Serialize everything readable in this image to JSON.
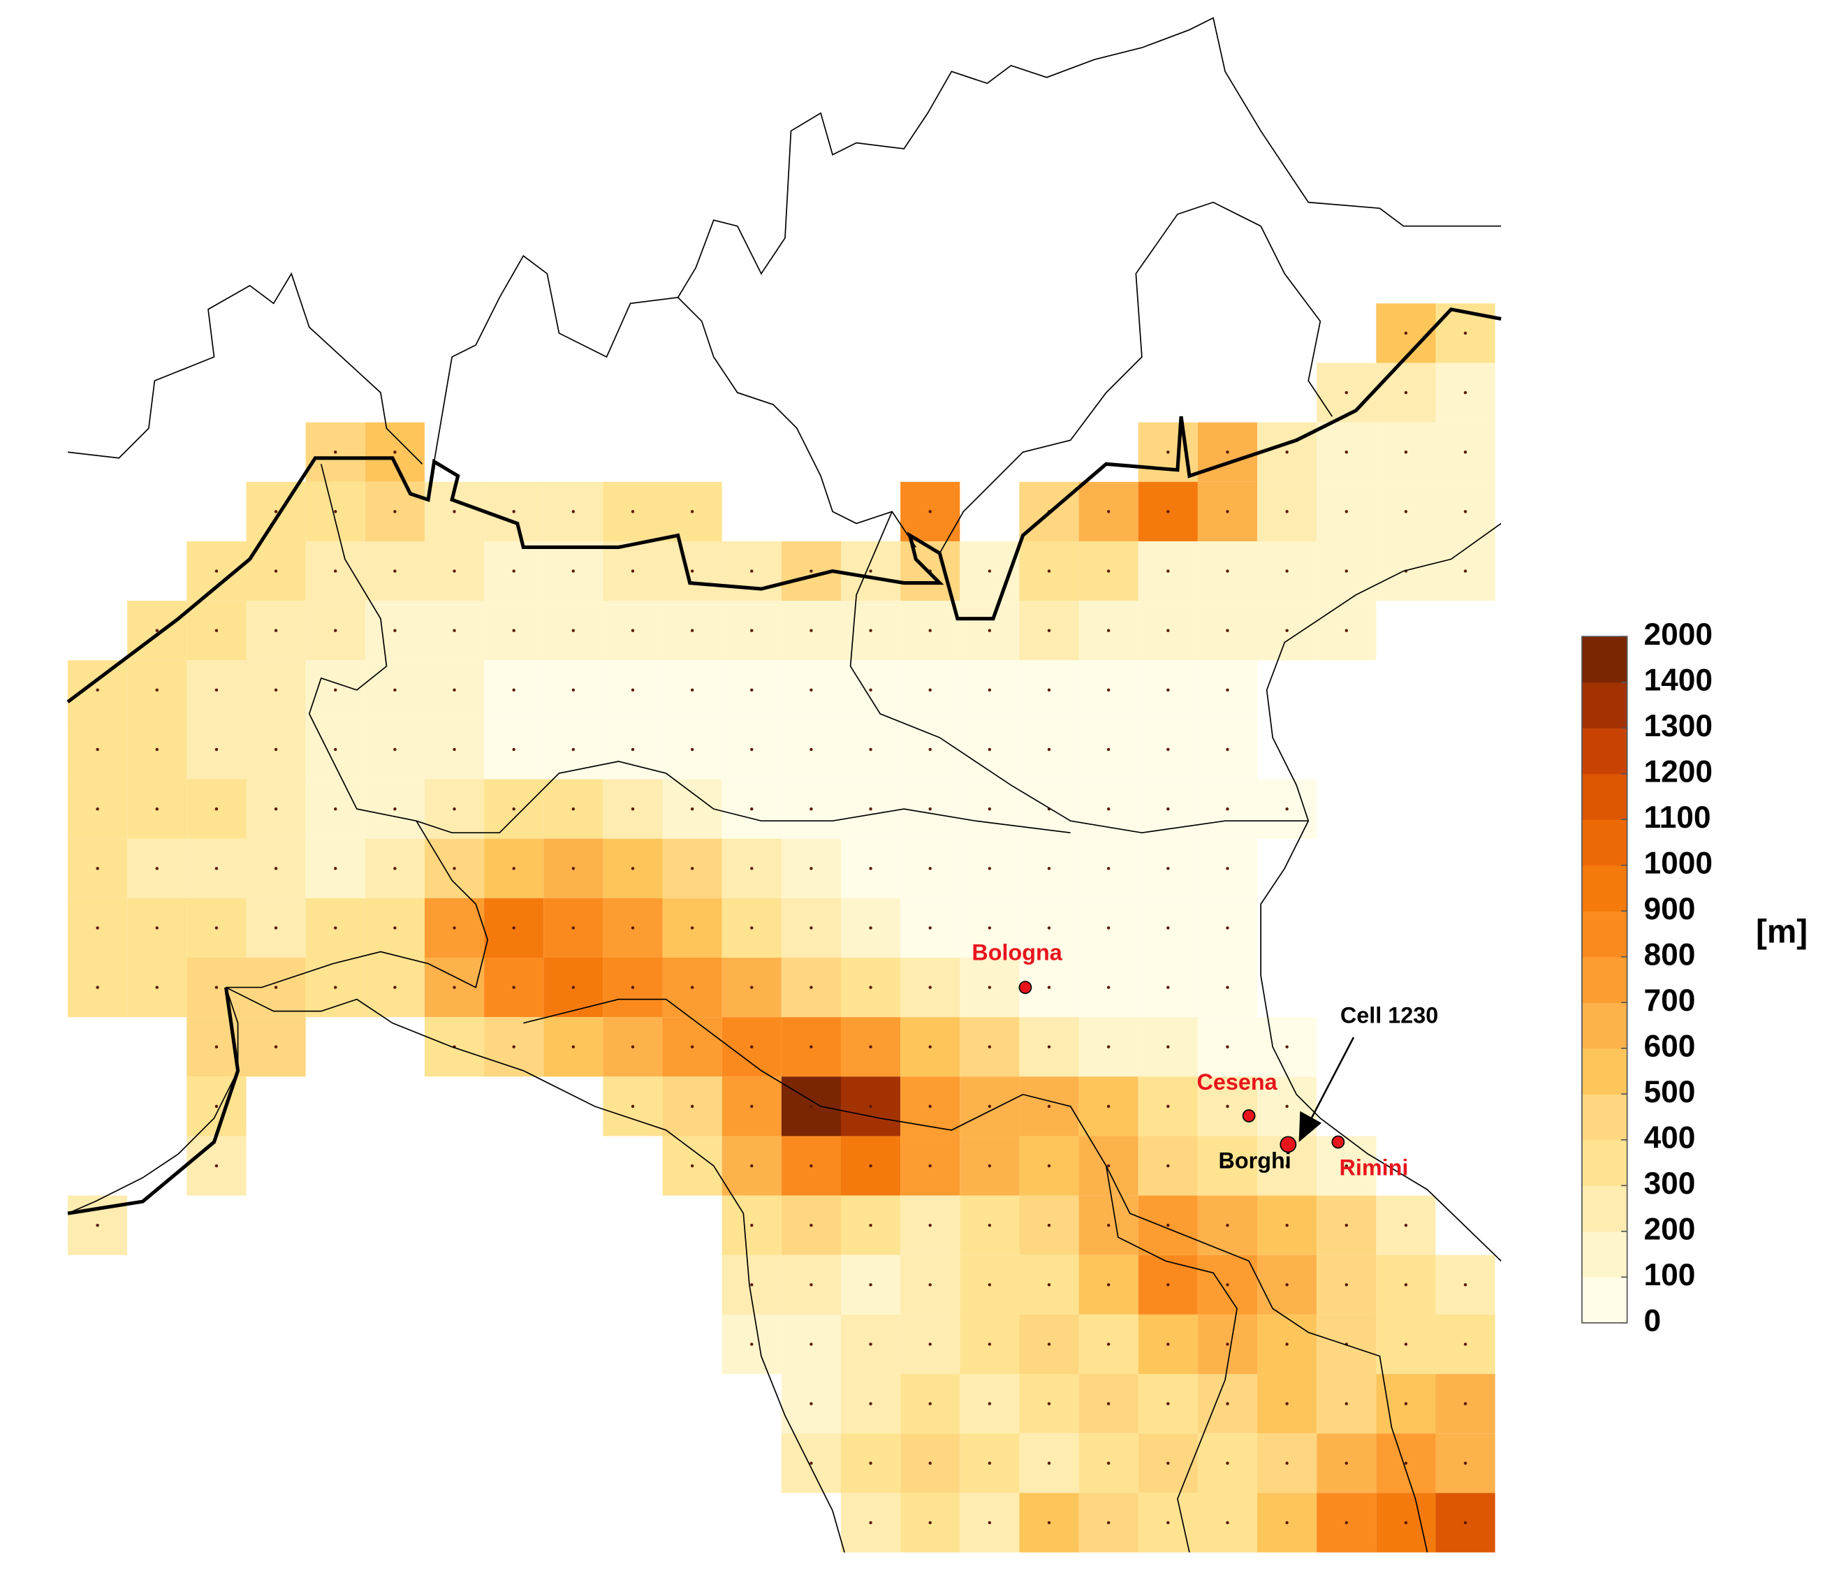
{
  "map": {
    "grid": {
      "values": [
        [
          null,
          null,
          null,
          null,
          null,
          null,
          null,
          null,
          null,
          null,
          null,
          null,
          null,
          null,
          null,
          null,
          null,
          null,
          null,
          null,
          null,
          null,
          500,
          300
        ],
        [
          null,
          null,
          null,
          null,
          null,
          null,
          null,
          null,
          null,
          null,
          null,
          null,
          null,
          null,
          null,
          null,
          null,
          null,
          null,
          null,
          null,
          200,
          200,
          150
        ],
        [
          null,
          null,
          null,
          null,
          400,
          500,
          null,
          null,
          null,
          null,
          null,
          null,
          null,
          null,
          null,
          null,
          null,
          null,
          400,
          600,
          200,
          150,
          100,
          100
        ],
        [
          null,
          null,
          null,
          300,
          300,
          400,
          250,
          200,
          200,
          300,
          300,
          null,
          null,
          null,
          800,
          null,
          400,
          600,
          900,
          600,
          200,
          100,
          100,
          100
        ],
        [
          null,
          null,
          300,
          300,
          200,
          250,
          200,
          150,
          150,
          200,
          250,
          200,
          400,
          200,
          400,
          100,
          300,
          300,
          100,
          100,
          100,
          100,
          100,
          100
        ],
        [
          null,
          300,
          300,
          200,
          200,
          150,
          100,
          100,
          100,
          100,
          100,
          100,
          100,
          100,
          100,
          100,
          200,
          100,
          100,
          100,
          100,
          100,
          null,
          null
        ],
        [
          300,
          300,
          200,
          200,
          150,
          100,
          100,
          50,
          50,
          50,
          50,
          50,
          50,
          50,
          50,
          50,
          50,
          50,
          50,
          50,
          null,
          null,
          null,
          null
        ],
        [
          300,
          300,
          250,
          200,
          150,
          100,
          100,
          50,
          50,
          50,
          50,
          50,
          50,
          50,
          50,
          50,
          50,
          50,
          50,
          50,
          null,
          null,
          null,
          null
        ],
        [
          300,
          300,
          300,
          200,
          150,
          150,
          200,
          300,
          300,
          200,
          100,
          50,
          50,
          50,
          50,
          50,
          50,
          50,
          50,
          50,
          50,
          null,
          null,
          null
        ],
        [
          300,
          250,
          250,
          200,
          150,
          200,
          400,
          500,
          600,
          500,
          400,
          200,
          100,
          50,
          50,
          50,
          50,
          50,
          50,
          50,
          null,
          null,
          null,
          null
        ],
        [
          300,
          300,
          300,
          250,
          300,
          300,
          700,
          900,
          800,
          700,
          500,
          300,
          200,
          100,
          50,
          50,
          50,
          50,
          50,
          50,
          null,
          null,
          null,
          null
        ],
        [
          300,
          300,
          400,
          400,
          300,
          300,
          600,
          800,
          900,
          800,
          700,
          600,
          400,
          300,
          200,
          100,
          50,
          50,
          50,
          50,
          null,
          null,
          null,
          null
        ],
        [
          null,
          null,
          400,
          400,
          null,
          null,
          300,
          400,
          500,
          600,
          700,
          800,
          800,
          700,
          500,
          400,
          200,
          100,
          100,
          50,
          50,
          null,
          null,
          null
        ],
        [
          null,
          null,
          300,
          null,
          null,
          null,
          null,
          null,
          null,
          300,
          400,
          700,
          1400,
          1300,
          700,
          600,
          600,
          500,
          300,
          200,
          100,
          null,
          null,
          null
        ],
        [
          null,
          null,
          200,
          null,
          null,
          null,
          null,
          null,
          null,
          null,
          300,
          600,
          800,
          900,
          700,
          600,
          500,
          600,
          400,
          300,
          200,
          100,
          null,
          null
        ],
        [
          200,
          null,
          null,
          null,
          null,
          null,
          null,
          null,
          null,
          null,
          null,
          300,
          400,
          300,
          200,
          300,
          400,
          600,
          700,
          600,
          500,
          400,
          200,
          null
        ],
        [
          null,
          null,
          null,
          null,
          null,
          null,
          null,
          null,
          null,
          null,
          null,
          200,
          200,
          100,
          200,
          300,
          300,
          500,
          800,
          700,
          600,
          400,
          300,
          200
        ],
        [
          null,
          null,
          null,
          null,
          null,
          null,
          null,
          null,
          null,
          null,
          null,
          100,
          100,
          200,
          200,
          300,
          400,
          300,
          500,
          600,
          500,
          400,
          300,
          300
        ],
        [
          null,
          null,
          null,
          null,
          null,
          null,
          null,
          null,
          null,
          null,
          null,
          null,
          100,
          200,
          300,
          200,
          300,
          400,
          300,
          400,
          500,
          400,
          500,
          600
        ],
        [
          null,
          null,
          null,
          null,
          null,
          null,
          null,
          null,
          null,
          null,
          null,
          null,
          200,
          300,
          400,
          300,
          200,
          300,
          400,
          300,
          400,
          600,
          700,
          600
        ],
        [
          null,
          null,
          null,
          null,
          null,
          null,
          null,
          null,
          null,
          null,
          null,
          null,
          null,
          200,
          300,
          200,
          500,
          400,
          300,
          300,
          500,
          800,
          900,
          1100
        ]
      ]
    },
    "legend": {
      "ticks": [
        0,
        100,
        200,
        300,
        400,
        500,
        600,
        700,
        800,
        900,
        1000,
        1100,
        1200,
        1300,
        1400,
        2000
      ],
      "colors": [
        "#fffde8",
        "#fff5cc",
        "#feecb0",
        "#fee391",
        "#fed780",
        "#fec55a",
        "#feb24c",
        "#fd9c30",
        "#fb8a1e",
        "#f47a0e",
        "#ec6a06",
        "#dc5604",
        "#c84303",
        "#a33203",
        "#7a2604"
      ],
      "unit": "[m]"
    },
    "places": [
      {
        "label": "Bologna",
        "color": "#e8141c"
      },
      {
        "label": "Cesena",
        "color": "#e8141c"
      },
      {
        "label": "Rimini",
        "color": "#e8141c"
      },
      {
        "label": "Borghi",
        "color": "#000000"
      }
    ],
    "annotation": "Cell 1230"
  }
}
